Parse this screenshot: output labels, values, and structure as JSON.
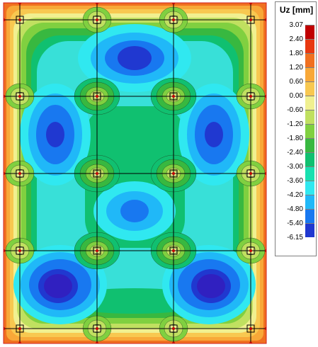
{
  "legend": {
    "title": "Uz [mm]",
    "values": [
      "3.07",
      "2.40",
      "1.80",
      "1.20",
      "0.60",
      "0.00",
      "-0.60",
      "-1.20",
      "-1.80",
      "-2.40",
      "-3.00",
      "-3.60",
      "-4.20",
      "-4.80",
      "-5.40",
      "-6.15"
    ],
    "colors": [
      "#c00000",
      "#e83810",
      "#f07020",
      "#f8a838",
      "#f8c850",
      "#f0f090",
      "#c0e060",
      "#80d040",
      "#38b840",
      "#10c070",
      "#18e0b0",
      "#30e8f0",
      "#20b8f8",
      "#1878f0",
      "#2038d0",
      "#2010a0"
    ]
  },
  "colors": {
    "field": "#38e0d8",
    "edge": "#f89030",
    "deep": "#3020c0",
    "blue": "#1878f0",
    "ring1": "#20b8f8",
    "ring2": "#10c070",
    "ring3": "#38b840",
    "ring4": "#80d040",
    "ring5": "#c0e060",
    "ring6": "#f0f090",
    "grid": "#000000",
    "support": "#c00000"
  }
}
